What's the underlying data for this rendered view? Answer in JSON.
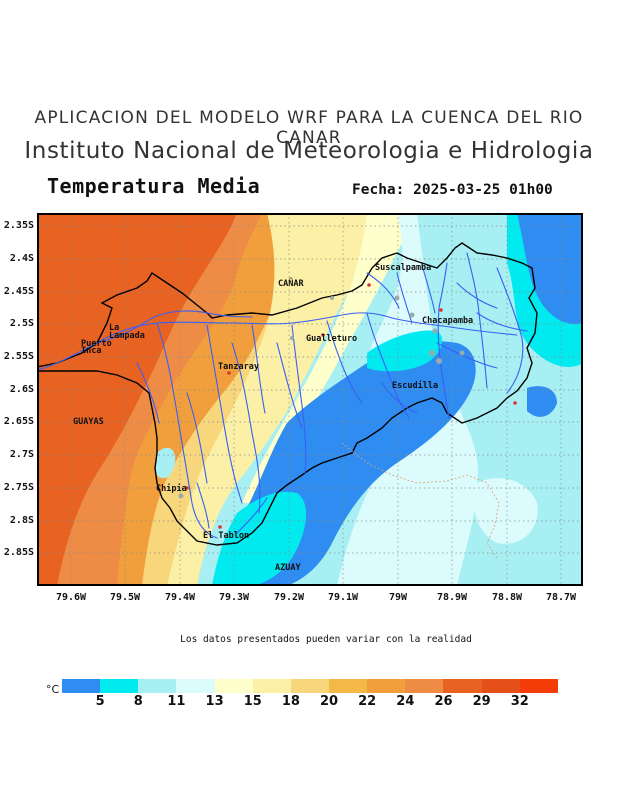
{
  "header": {
    "line1": "APLICACION DEL MODELO WRF PARA LA CUENCA DEL RIO CANAR",
    "line2": "Instituto Nacional de Meteorologia e Hidrologia",
    "variable": "Temperatura Media",
    "date": "Fecha: 2025-03-25 01h00"
  },
  "map": {
    "lat_labels": [
      "2.35S",
      "2.4S",
      "2.45S",
      "2.5S",
      "2.55S",
      "2.6S",
      "2.65S",
      "2.7S",
      "2.75S",
      "2.8S",
      "2.85S"
    ],
    "lon_labels": [
      "79.6W",
      "79.5W",
      "79.4W",
      "79.3W",
      "79.2W",
      "79.1W",
      "79W",
      "78.9W",
      "78.8W",
      "78.7W"
    ],
    "places": {
      "canar": "CAÑAR",
      "suscalpamba": "Suscalpamba",
      "chacapamba": "Chacapamba",
      "gualleturo": "Gualleturo",
      "la": "La",
      "lampada": "Lampada",
      "puerto": "Puerto",
      "inca": "Inca",
      "tanzaray": "Tanzaray",
      "guayas": "GUAYAS",
      "escudilla": "Escudilla",
      "chipia": "Chipia",
      "el_tablon": "El Tablon",
      "azuay": "AZUAY"
    }
  },
  "footnote": "Los datos presentados pueden variar con la realidad",
  "legend": {
    "unit": "°C",
    "colors": [
      "#2f8cf0",
      "#00eaf0",
      "#a7eff3",
      "#dcfbfd",
      "#ffffcc",
      "#fbf0a6",
      "#f8d67c",
      "#f4b848",
      "#f19f3c",
      "#ee8c46",
      "#e86222",
      "#e5501a",
      "#f43c08"
    ],
    "labels": [
      "5",
      "8",
      "11",
      "13",
      "15",
      "18",
      "20",
      "22",
      "24",
      "26",
      "29",
      "32"
    ]
  }
}
